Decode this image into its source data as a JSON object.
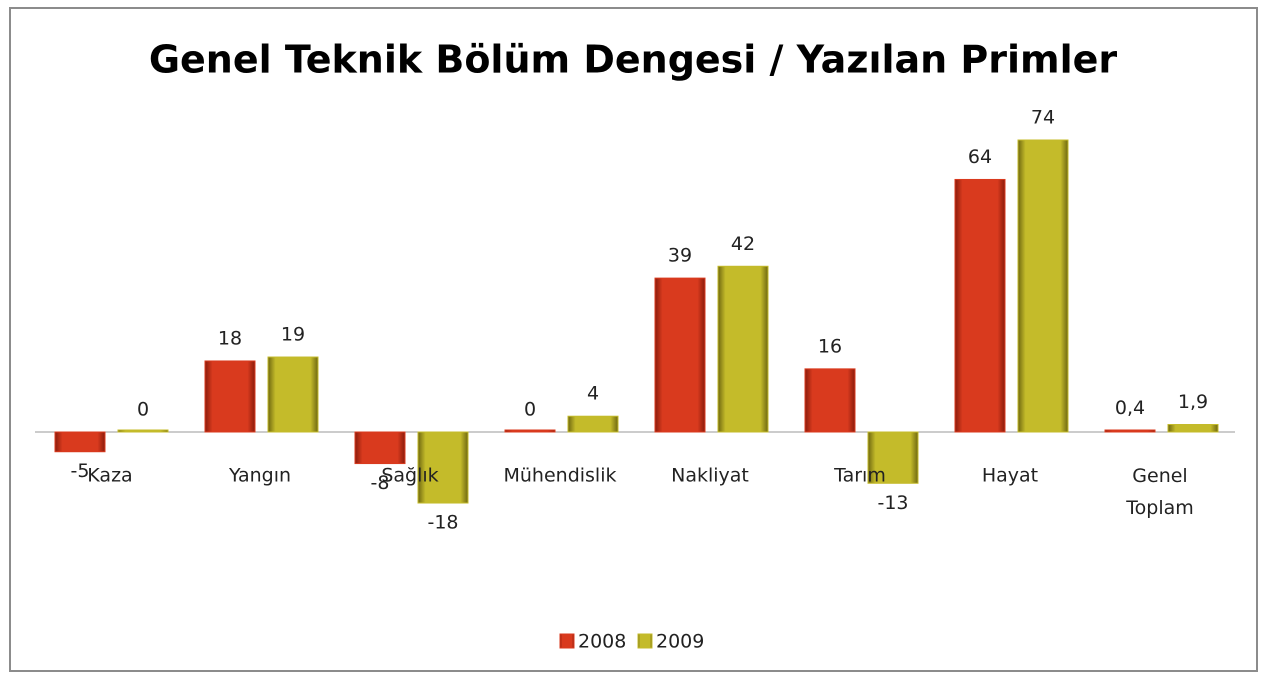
{
  "chart_data": {
    "type": "bar",
    "title": "Genel Teknik Bölüm Dengesi / Yazılan Primler",
    "categories": [
      "Kaza",
      "Yangın",
      "Sağlık",
      "Mühendislik",
      "Nakliyat",
      "Tarım",
      "Hayat",
      "Genel Toplam"
    ],
    "series": [
      {
        "name": "2008",
        "color": "#d93a1e",
        "values": [
          -5,
          18,
          -8,
          0,
          39,
          16,
          64,
          0.4
        ],
        "value_labels": [
          "-5",
          "18",
          "-8",
          "0",
          "39",
          "16",
          "64",
          "0,4"
        ]
      },
      {
        "name": "2009",
        "color": "#c4bb2a",
        "values": [
          0,
          19,
          -18,
          4,
          42,
          -13,
          74,
          1.9
        ],
        "value_labels": [
          "0",
          "19",
          "-18",
          "4",
          "42",
          "-13",
          "74",
          "1,9"
        ]
      }
    ],
    "legend": "bottom"
  }
}
